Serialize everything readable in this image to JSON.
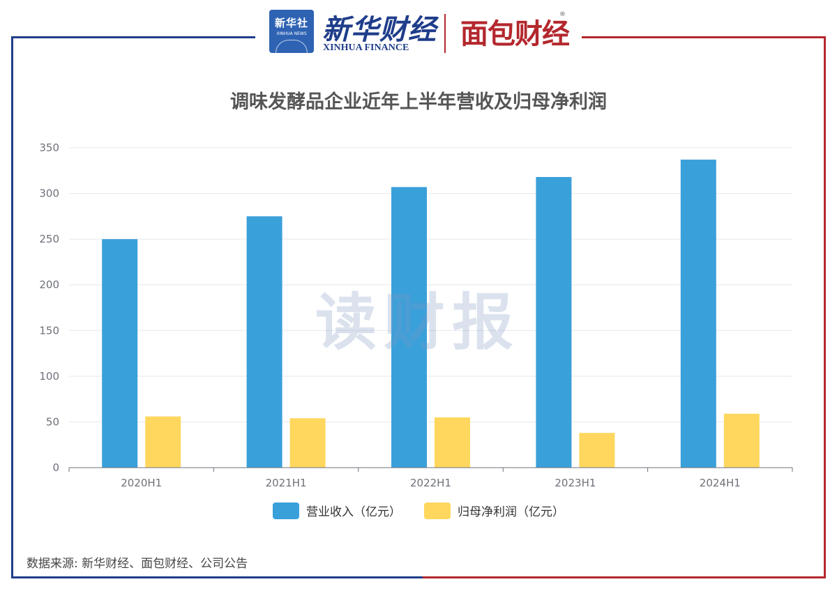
{
  "header": {
    "xinhua_news_cn": "新华社",
    "xinhua_news_en": "XINHUA NEWS",
    "xinhua_finance_cn": "新华财经",
    "xinhua_finance_en": "XINHUA FINANCE",
    "mianbao_logo": "面包财经",
    "registered_mark": "®"
  },
  "watermark": "读财报",
  "source": "数据来源: 新华财经、面包财经、公司公告",
  "colors": {
    "revenue": "#3aa0da",
    "net_profit": "#ffd75e",
    "frame_left": "#1f3d8a",
    "frame_right": "#b3282d"
  },
  "chart_data": {
    "type": "bar",
    "title": "调味发酵品企业近年上半年营收及归母净利润",
    "categories": [
      "2020H1",
      "2021H1",
      "2022H1",
      "2023H1",
      "2024H1"
    ],
    "series": [
      {
        "name": "营业收入（亿元）",
        "color": "#3aa0da",
        "values": [
          250,
          275,
          307,
          318,
          337
        ]
      },
      {
        "name": "归母净利润（亿元）",
        "color": "#ffd75e",
        "values": [
          56,
          54,
          55,
          38,
          59
        ]
      }
    ],
    "yticks": [
      0,
      50,
      100,
      150,
      200,
      250,
      300,
      350
    ],
    "ylim": [
      0,
      350
    ],
    "grid": true,
    "legend_position": "bottom"
  }
}
